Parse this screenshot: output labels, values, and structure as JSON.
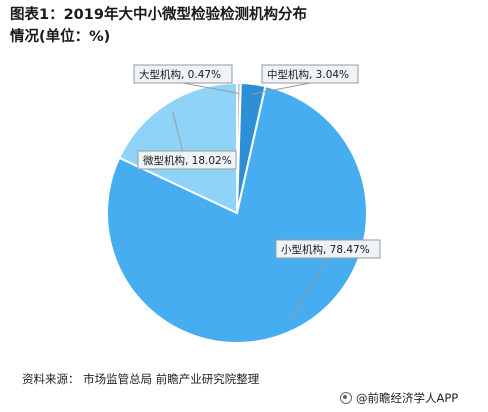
{
  "title": "图表1：2019年大中小微型检验检测机构分布情况(单位：%)",
  "source": "资料来源： 市场监管总局 前瞻产业研究院整理",
  "brand": "@前瞻经济学人APP",
  "chart_data": {
    "type": "pie",
    "slices": [
      {
        "label": "大型机构",
        "value": 0.47,
        "display": "大型机构, 0.47%",
        "color": "#c0c0c0"
      },
      {
        "label": "中型机构",
        "value": 3.04,
        "display": "中型机构, 3.04%",
        "color": "#2d8fd6"
      },
      {
        "label": "小型机构",
        "value": 78.47,
        "display": "小型机构, 78.47%",
        "color": "#46aef0"
      },
      {
        "label": "微型机构",
        "value": 18.02,
        "display": "微型机构, 18.02%",
        "color": "#8fd3f9"
      }
    ],
    "title": "图表1：2019年大中小微型检验检测机构分布情况(单位：%)"
  }
}
